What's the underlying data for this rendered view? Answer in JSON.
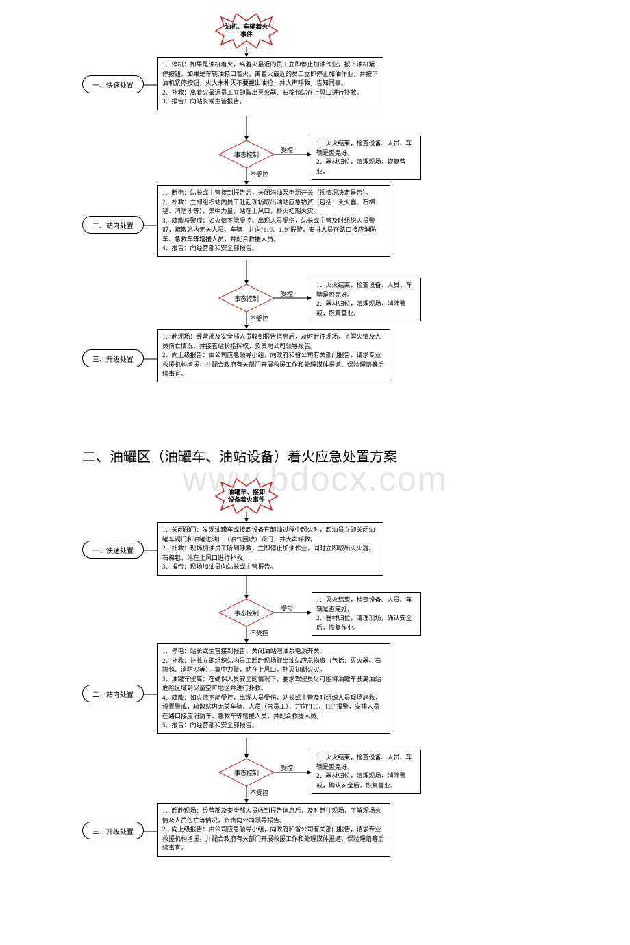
{
  "watermark": "www.bdocx.com",
  "colors": {
    "stroke_black": "#000000",
    "stroke_red": "#d8201a",
    "fill_white": "#ffffff",
    "text_black": "#000000"
  },
  "typography": {
    "body_font": "SimSun",
    "box_fontsize_pt": 9,
    "title_fontsize_pt": 20
  },
  "chart1": {
    "type": "flowchart",
    "start_label": "油机、车辆着火\n事件",
    "steps": {
      "s1": {
        "label": "一、快速处置",
        "box": "1、停机：如果是油机着火，离着火最近的员工立即停止加油作业，按下油机紧停按钮。如果是车辆油箱口着火，离着火最近的员工立即停止加油作业，并按下油机紧停按钮，火大未扑灭不要拔出油枪，并大声呼救，告知同事。\n2、扑救：离着火最近员工立即取出灭火器、石棉毯站在上风口进行扑救。\n3、报告：向站长或主管报告。"
      },
      "s2": {
        "label": "二、站内处置",
        "box": "1、断电：站长或主管接到报告后，关闭潜油泵电源开关（视情况决定是否）。\n2、扑救：立即组织站内员工赴起现场取出油站应急物资（包括：灭火器、石棉毯、消防沙等），集中力量，站在上风口，扑灭初期火灾。\n3、疏散与警戒：如火情不能受控、出现人员受伤，站长或主管及时组织人员警戒，疏散站内无关人员、车辆，并向\"110、119\"报警，安排人员在路口接应消防车、急救车等增援人员，并配合救援人员。\n4、报告：向经营部和安全部报告。"
      },
      "s3": {
        "label": "三、升级处置",
        "box": "1、赴现场：经营部及安全部人员收到报告信息后，及时赶往现场，了解火情及人员伤亡情况，并接管站长指挥权，负责向公司领导报告。\n2、向上级报告：由公司应急领导小组，向政府和省公司有关部门报告，请求专业救援机构增援，并配合政府有关部门开展救援工作和处理媒体报道、保险理赔等后续事宜。"
      }
    },
    "decisions": {
      "d1": {
        "label": "事态控制",
        "yes": "受控",
        "no": "不受控",
        "outcome": "1、灭火结束，检查设备、人员、车辆是否完好。\n2、器材归位，清理现场，恢复营业。"
      },
      "d2": {
        "label": "事态控制",
        "yes": "受控",
        "no": "不受控",
        "outcome": "1、灭火结束，检查设备、人员、车辆是否完好。\n2、器材归位，清理现场，消除警戒，恢复营业。"
      }
    }
  },
  "section2_title": "二、油罐区（油罐车、油站设备）着火应急处置方案",
  "chart2": {
    "type": "flowchart",
    "start_label": "油罐车、接卸\n设备着火事件",
    "steps": {
      "s1": {
        "label": "一、快速处置",
        "box": "1、关闭阀门：发现油罐车或接卸设备在卸油过程中起火时，卸油员立即关闭油罐车阀门和油罐进油口（油气回收）阀门，并大声呼救。\n2、扑救：现场加油员工听到呼救，立即停止加油作业，同时立即取出灭火器、石棉毯，站在上风口进行扑救。\n3、报告：现场加油员向站长或主管报告。"
      },
      "s2": {
        "label": "二、站内处置",
        "box": "1、停电：站长或主管接到报告，关闭油站潜油泵电源开关。\n2、扑救：扑救立即组织站内员工起赴现场取出油站应急物资（包括：灭火器、石棉毯、消防沙等），集中力量，站在上风口，扑灭初期火灾。\n3、油罐车驶离：在确保人员安全的情况下，要求驾驶员尽可能将油罐车驶离油站危险区域到尽量空旷地区并进行扑救。\n4、疏散：如火情不能受控，出现人员受伤，站长或主管及时组织人员现场施救，设置警戒，疏散站内无关车辆、人员（含员工），并向\"110、119\"报警，安排人员在路口接应消防车、急救车等增援人员，并配合救援人员。\n5、报告：向经营部和安全部报告。"
      },
      "s3": {
        "label": "三、升级处置",
        "box": "1、起赴现场：经营部及安全部人员收到报告信息后，及时赶往现场，了解现场火情及人员伤亡等情况，负责向公司领导报告。\n2、向上级报告：由公司应急领导小组，向政府和省公司有关部门报告，请求专业救援机构增援，并配合政府有关部门开展救援工作和处理媒体报道、保险理赔等后续事宜。"
      }
    },
    "decisions": {
      "d1": {
        "label": "事态控制",
        "yes": "受控",
        "no": "不受控",
        "outcome": "1、灭火结束，检查设备、人员、车辆是否完好。\n2、器材归位，清理现场，确认安全后，恢复作业。"
      },
      "d2": {
        "label": "事态控制",
        "yes": "受控",
        "no": "不受控",
        "outcome": "1、灭火结束，检查设备、人员、车辆是否完好。\n2、器材归位，清理现场，消除警戒，确认安全后，恢复营业。"
      }
    }
  }
}
